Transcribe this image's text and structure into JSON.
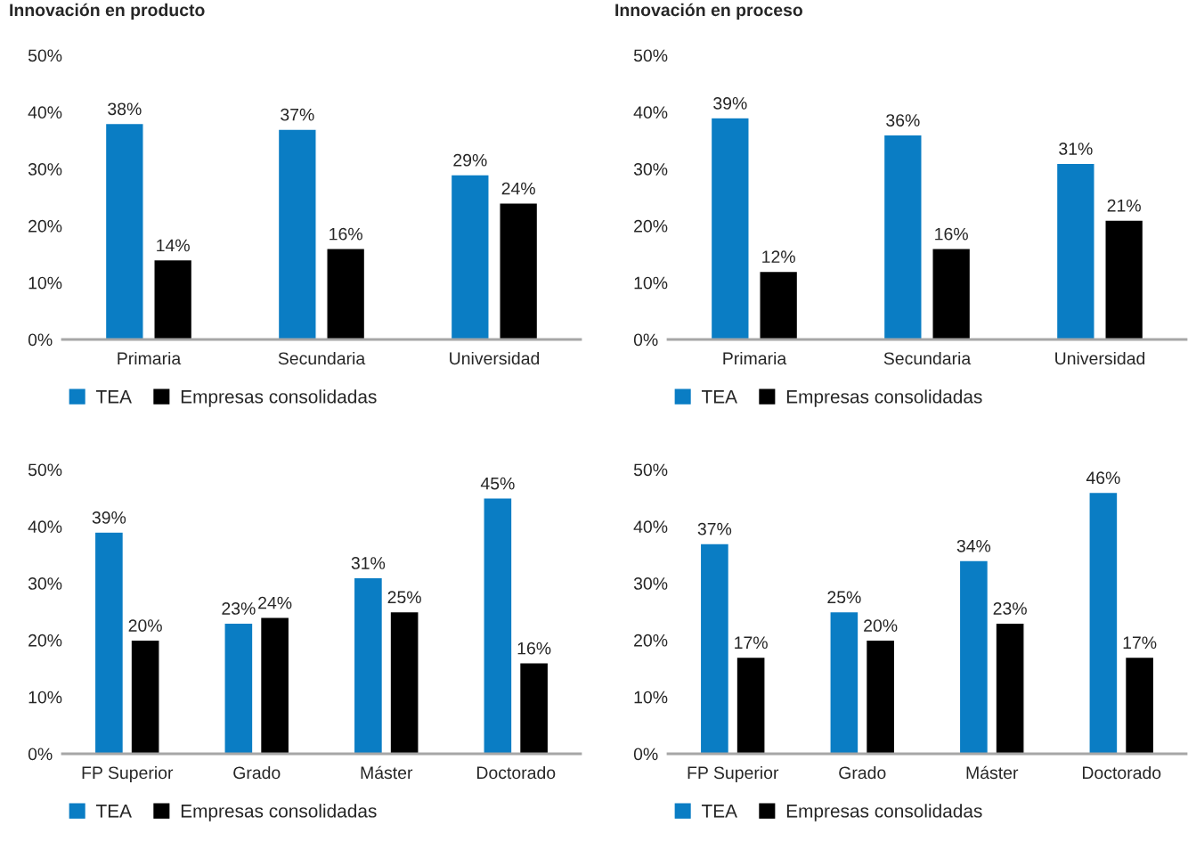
{
  "chart_data": [
    {
      "type": "bar",
      "title": "Innovación en producto",
      "categories": [
        "Primaria",
        "Secundaria",
        "Universidad"
      ],
      "series": [
        {
          "name": "TEA",
          "color": "#0a7dc4",
          "values": [
            38,
            37,
            29
          ],
          "value_labels": [
            "38%",
            "37%",
            "29%"
          ]
        },
        {
          "name": "Empresas consolidadas",
          "color": "#000000",
          "values": [
            14,
            16,
            24
          ],
          "value_labels": [
            "14%",
            "16%",
            "24%"
          ]
        }
      ],
      "ylim": [
        0,
        50
      ],
      "yticks": [
        {
          "value": 0,
          "label": "0%"
        },
        {
          "value": 10,
          "label": "10%"
        },
        {
          "value": 20,
          "label": "20%"
        },
        {
          "value": 30,
          "label": "30%"
        },
        {
          "value": 40,
          "label": "40%"
        },
        {
          "value": 50,
          "label": "50%"
        }
      ],
      "grid": false,
      "legend": "bottom"
    },
    {
      "type": "bar",
      "title": "Innovación en proceso",
      "categories": [
        "Primaria",
        "Secundaria",
        "Universidad"
      ],
      "series": [
        {
          "name": "TEA",
          "color": "#0a7dc4",
          "values": [
            39,
            36,
            31
          ],
          "value_labels": [
            "39%",
            "36%",
            "31%"
          ]
        },
        {
          "name": "Empresas consolidadas",
          "color": "#000000",
          "values": [
            12,
            16,
            21
          ],
          "value_labels": [
            "12%",
            "16%",
            "21%"
          ]
        }
      ],
      "ylim": [
        0,
        50
      ],
      "yticks": [
        {
          "value": 0,
          "label": "0%"
        },
        {
          "value": 10,
          "label": "10%"
        },
        {
          "value": 20,
          "label": "20%"
        },
        {
          "value": 30,
          "label": "30%"
        },
        {
          "value": 40,
          "label": "40%"
        },
        {
          "value": 50,
          "label": "50%"
        }
      ],
      "grid": false,
      "legend": "bottom"
    },
    {
      "type": "bar",
      "categories": [
        "FP Superior",
        "Grado",
        "Máster",
        "Doctorado"
      ],
      "series": [
        {
          "name": "TEA",
          "color": "#0a7dc4",
          "values": [
            39,
            23,
            31,
            45
          ],
          "value_labels": [
            "39%",
            "23%",
            "31%",
            "45%"
          ]
        },
        {
          "name": "Empresas consolidadas",
          "color": "#000000",
          "values": [
            20,
            24,
            25,
            16
          ],
          "value_labels": [
            "20%",
            "24%",
            "25%",
            "16%"
          ]
        }
      ],
      "ylim": [
        0,
        50
      ],
      "yticks": [
        {
          "value": 0,
          "label": "0%"
        },
        {
          "value": 10,
          "label": "10%"
        },
        {
          "value": 20,
          "label": "20%"
        },
        {
          "value": 30,
          "label": "30%"
        },
        {
          "value": 40,
          "label": "40%"
        },
        {
          "value": 50,
          "label": "50%"
        }
      ],
      "grid": false,
      "legend": "bottom"
    },
    {
      "type": "bar",
      "categories": [
        "FP Superior",
        "Grado",
        "Máster",
        "Doctorado"
      ],
      "series": [
        {
          "name": "TEA",
          "color": "#0a7dc4",
          "values": [
            37,
            25,
            34,
            46
          ],
          "value_labels": [
            "37%",
            "25%",
            "34%",
            "46%"
          ]
        },
        {
          "name": "Empresas consolidadas",
          "color": "#000000",
          "values": [
            17,
            20,
            23,
            17
          ],
          "value_labels": [
            "17%",
            "20%",
            "23%",
            "17%"
          ]
        }
      ],
      "ylim": [
        0,
        50
      ],
      "yticks": [
        {
          "value": 0,
          "label": "0%"
        },
        {
          "value": 10,
          "label": "10%"
        },
        {
          "value": 20,
          "label": "20%"
        },
        {
          "value": 30,
          "label": "30%"
        },
        {
          "value": 40,
          "label": "40%"
        },
        {
          "value": 50,
          "label": "50%"
        }
      ],
      "grid": false,
      "legend": "bottom"
    }
  ]
}
